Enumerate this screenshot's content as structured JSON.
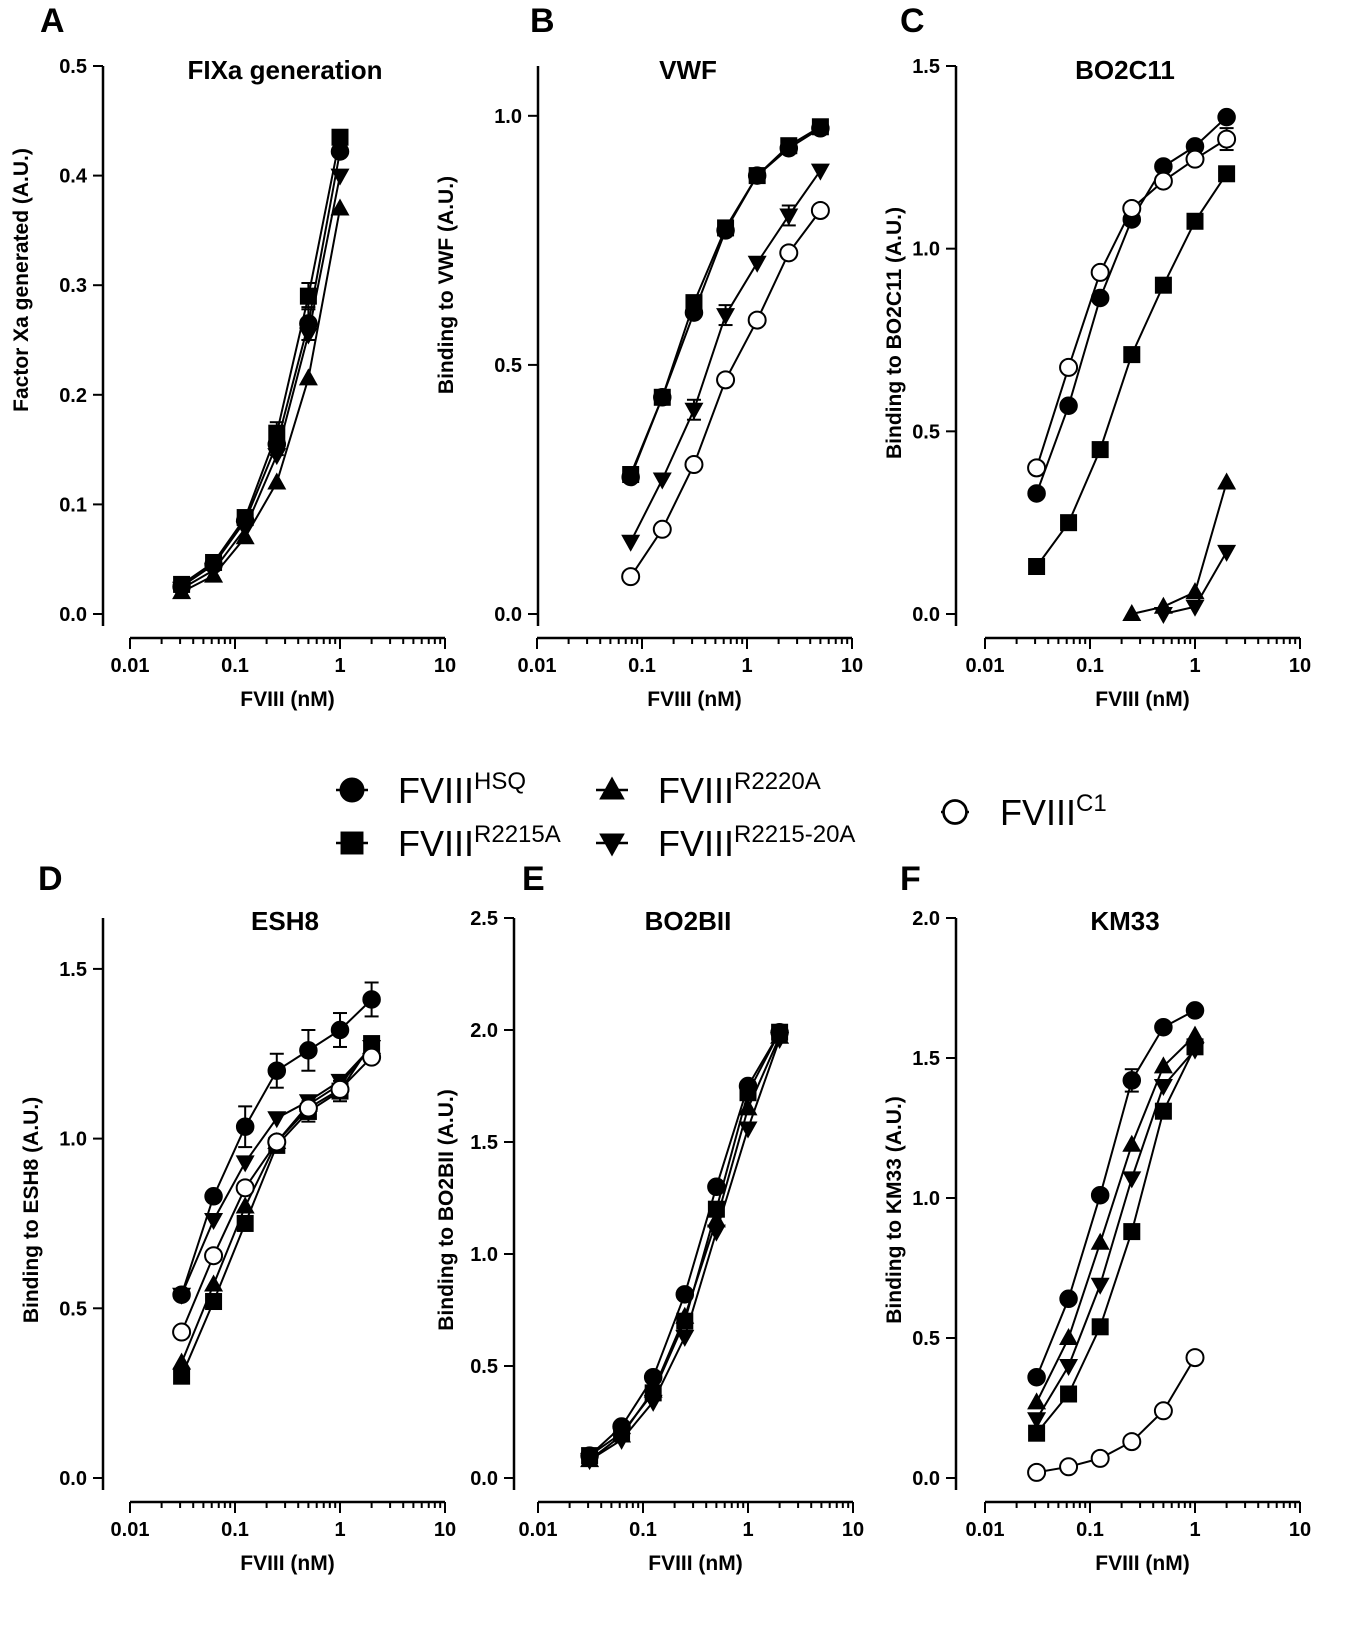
{
  "legend": [
    {
      "marker": "circle-filled",
      "base": "FVIII",
      "sup": "HSQ"
    },
    {
      "marker": "square-filled",
      "base": "FVIII",
      "sup": "R2215A"
    },
    {
      "marker": "triangle-up-filled",
      "base": "FVIII",
      "sup": "R2220A"
    },
    {
      "marker": "triangle-down-filled",
      "base": "FVIII",
      "sup": "R2215-20A"
    },
    {
      "marker": "circle-open",
      "base": "FVIII",
      "sup": "C1"
    }
  ],
  "chart_data": [
    {
      "panel": "A",
      "type": "line",
      "title": "FIXa generation",
      "xlabel": "FVIII (nM)",
      "ylabel": "Factor Xa generated (A.U.)",
      "xscale": "log",
      "xlim": [
        0.01,
        10
      ],
      "ylim": [
        0,
        0.5
      ],
      "xticks": [
        "0.01",
        "0.1",
        "1",
        "10"
      ],
      "yticks": [
        "0.0",
        "0.1",
        "0.2",
        "0.3",
        "0.4",
        "0.5"
      ],
      "series": [
        {
          "marker": "circle-filled",
          "x": [
            0.031,
            0.0625,
            0.125,
            0.25,
            0.5,
            1
          ],
          "y": [
            0.025,
            0.045,
            0.085,
            0.155,
            0.265,
            0.422
          ],
          "err": [
            0,
            0,
            0,
            0.01,
            0.015,
            0
          ]
        },
        {
          "marker": "square-filled",
          "x": [
            0.031,
            0.0625,
            0.125,
            0.25,
            0.5,
            1
          ],
          "y": [
            0.027,
            0.047,
            0.088,
            0.165,
            0.29,
            0.435
          ],
          "err": [
            0,
            0,
            0,
            0.01,
            0.012,
            0
          ]
        },
        {
          "marker": "triangle-up-filled",
          "x": [
            0.031,
            0.0625,
            0.125,
            0.25,
            0.5,
            1
          ],
          "y": [
            0.02,
            0.035,
            0.07,
            0.12,
            0.215,
            0.37
          ],
          "err": [
            0,
            0,
            0,
            0,
            0,
            0
          ]
        },
        {
          "marker": "triangle-down-filled",
          "x": [
            0.031,
            0.0625,
            0.125,
            0.25,
            0.5,
            1
          ],
          "y": [
            0.023,
            0.04,
            0.078,
            0.145,
            0.255,
            0.4
          ],
          "err": [
            0,
            0,
            0,
            0,
            0,
            0
          ]
        }
      ]
    },
    {
      "panel": "B",
      "type": "line",
      "title": "VWF",
      "xlabel": "FVIII (nM)",
      "ylabel": "Binding to VWF (A.U.)",
      "xscale": "log",
      "xlim": [
        0.01,
        10
      ],
      "ylim": [
        0,
        1.1
      ],
      "xticks": [
        "0.01",
        "0.1",
        "1",
        "10"
      ],
      "yticks": [
        "0.0",
        "0.5",
        "1.0"
      ],
      "series": [
        {
          "marker": "circle-filled",
          "x": [
            0.078,
            0.156,
            0.3125,
            0.625,
            1.25,
            2.5,
            5
          ],
          "y": [
            0.275,
            0.435,
            0.605,
            0.77,
            0.88,
            0.935,
            0.975
          ],
          "err": [
            0,
            0,
            0,
            0,
            0,
            0,
            0
          ]
        },
        {
          "marker": "square-filled",
          "x": [
            0.078,
            0.156,
            0.3125,
            0.625,
            1.25,
            2.5,
            5
          ],
          "y": [
            0.28,
            0.435,
            0.625,
            0.775,
            0.88,
            0.94,
            0.978
          ],
          "err": [
            0,
            0,
            0,
            0,
            0,
            0,
            0
          ]
        },
        {
          "marker": "triangle-down-filled",
          "x": [
            0.078,
            0.156,
            0.3125,
            0.625,
            1.25,
            2.5,
            5
          ],
          "y": [
            0.145,
            0.27,
            0.41,
            0.6,
            0.705,
            0.8,
            0.89
          ],
          "err": [
            0,
            0,
            0.02,
            0.02,
            0,
            0.02,
            0
          ]
        },
        {
          "marker": "circle-open",
          "x": [
            0.078,
            0.156,
            0.3125,
            0.625,
            1.25,
            2.5,
            5
          ],
          "y": [
            0.075,
            0.17,
            0.3,
            0.47,
            0.59,
            0.725,
            0.81
          ],
          "err": [
            0,
            0,
            0,
            0,
            0,
            0,
            0
          ]
        }
      ]
    },
    {
      "panel": "C",
      "type": "line",
      "title": "BO2C11",
      "xlabel": "FVIII (nM)",
      "ylabel": "Binding to BO2C11 (A.U.)",
      "xscale": "log",
      "xlim": [
        0.01,
        10
      ],
      "ylim": [
        0,
        1.5
      ],
      "xticks": [
        "0.01",
        "0.1",
        "1",
        "10"
      ],
      "yticks": [
        "0.0",
        "0.5",
        "1.0",
        "1.5"
      ],
      "series": [
        {
          "marker": "circle-filled",
          "x": [
            0.031,
            0.0625,
            0.125,
            0.25,
            0.5,
            1,
            2
          ],
          "y": [
            0.33,
            0.57,
            0.865,
            1.08,
            1.225,
            1.28,
            1.36
          ],
          "err": [
            0,
            0,
            0,
            0,
            0,
            0,
            0
          ]
        },
        {
          "marker": "square-filled",
          "x": [
            0.031,
            0.0625,
            0.125,
            0.25,
            0.5,
            1,
            2
          ],
          "y": [
            0.13,
            0.25,
            0.45,
            0.71,
            0.9,
            1.075,
            1.205
          ],
          "err": [
            0,
            0,
            0,
            0,
            0,
            0,
            0
          ]
        },
        {
          "marker": "triangle-up-filled",
          "x": [
            0.25,
            0.5,
            1,
            2
          ],
          "y": [
            0.0,
            0.02,
            0.06,
            0.36
          ],
          "err": [
            0,
            0,
            0,
            0
          ]
        },
        {
          "marker": "triangle-down-filled",
          "x": [
            0.5,
            1,
            2
          ],
          "y": [
            0.0,
            0.02,
            0.17
          ],
          "err": [
            0,
            0,
            0
          ]
        },
        {
          "marker": "circle-open",
          "x": [
            0.031,
            0.0625,
            0.125,
            0.25,
            0.5,
            1,
            2
          ],
          "y": [
            0.4,
            0.675,
            0.935,
            1.11,
            1.185,
            1.245,
            1.3
          ],
          "err": [
            0,
            0,
            0,
            0,
            0,
            0,
            0.03
          ]
        }
      ]
    },
    {
      "panel": "D",
      "type": "line",
      "title": "ESH8",
      "xlabel": "FVIII (nM)",
      "ylabel": "Binding to  ESH8 (A.U.)",
      "xscale": "log",
      "xlim": [
        0.01,
        10
      ],
      "ylim": [
        0,
        1.65
      ],
      "xticks": [
        "0.01",
        "0.1",
        "1",
        "10"
      ],
      "yticks": [
        "0.0",
        "0.5",
        "1.0",
        "1.5"
      ],
      "series": [
        {
          "marker": "circle-filled",
          "x": [
            0.031,
            0.0625,
            0.125,
            0.25,
            0.5,
            1,
            2
          ],
          "y": [
            0.54,
            0.83,
            1.035,
            1.2,
            1.26,
            1.32,
            1.41
          ],
          "err": [
            0,
            0,
            0.06,
            0.05,
            0.06,
            0.05,
            0.05
          ]
        },
        {
          "marker": "square-filled",
          "x": [
            0.031,
            0.0625,
            0.125,
            0.25,
            0.5,
            1,
            2
          ],
          "y": [
            0.3,
            0.52,
            0.75,
            0.98,
            1.08,
            1.14,
            1.28
          ],
          "err": [
            0,
            0,
            0,
            0,
            0.03,
            0.03,
            0
          ]
        },
        {
          "marker": "triangle-up-filled",
          "x": [
            0.031,
            0.0625,
            0.125,
            0.25,
            0.5,
            1,
            2
          ],
          "y": [
            0.34,
            0.57,
            0.8,
            0.99,
            1.1,
            1.16,
            1.27
          ],
          "err": [
            0,
            0,
            0,
            0,
            0,
            0,
            0
          ]
        },
        {
          "marker": "triangle-down-filled",
          "x": [
            0.031,
            0.0625,
            0.125,
            0.25,
            0.5,
            1,
            2
          ],
          "y": [
            0.54,
            0.76,
            0.93,
            1.06,
            1.11,
            1.17,
            1.27
          ],
          "err": [
            0,
            0,
            0,
            0,
            0,
            0,
            0
          ]
        },
        {
          "marker": "circle-open",
          "x": [
            0.031,
            0.0625,
            0.125,
            0.25,
            0.5,
            1,
            2
          ],
          "y": [
            0.43,
            0.655,
            0.855,
            0.99,
            1.09,
            1.145,
            1.24
          ],
          "err": [
            0,
            0,
            0,
            0,
            0,
            0,
            0
          ]
        }
      ]
    },
    {
      "panel": "E",
      "type": "line",
      "title": "BO2BII",
      "xlabel": "FVIII (nM)",
      "ylabel": "Binding to BO2BII (A.U.)",
      "xscale": "log",
      "xlim": [
        0.01,
        10
      ],
      "ylim": [
        0,
        2.5
      ],
      "xticks": [
        "0.01",
        "0.1",
        "1",
        "10"
      ],
      "yticks": [
        "0.0",
        "0.5",
        "1.0",
        "1.5",
        "2.0",
        "2.5"
      ],
      "series": [
        {
          "marker": "circle-filled",
          "x": [
            0.031,
            0.0625,
            0.125,
            0.25,
            0.5,
            1,
            2
          ],
          "y": [
            0.1,
            0.23,
            0.45,
            0.82,
            1.3,
            1.75,
            1.99
          ],
          "err": [
            0,
            0,
            0,
            0,
            0,
            0,
            0
          ]
        },
        {
          "marker": "square-filled",
          "x": [
            0.031,
            0.0625,
            0.125,
            0.25,
            0.5,
            1,
            2
          ],
          "y": [
            0.1,
            0.2,
            0.38,
            0.7,
            1.2,
            1.72,
            1.99
          ],
          "err": [
            0,
            0,
            0,
            0,
            0,
            0,
            0
          ]
        },
        {
          "marker": "triangle-up-filled",
          "x": [
            0.031,
            0.0625,
            0.125,
            0.25,
            0.5,
            1,
            2
          ],
          "y": [
            0.08,
            0.19,
            0.39,
            0.72,
            1.15,
            1.65,
            1.97
          ],
          "err": [
            0,
            0,
            0,
            0,
            0,
            0,
            0
          ]
        },
        {
          "marker": "triangle-down-filled",
          "x": [
            0.031,
            0.0625,
            0.125,
            0.25,
            0.5,
            1,
            2
          ],
          "y": [
            0.08,
            0.17,
            0.34,
            0.63,
            1.1,
            1.56,
            1.96
          ],
          "err": [
            0,
            0,
            0,
            0,
            0,
            0,
            0
          ]
        }
      ]
    },
    {
      "panel": "F",
      "type": "line",
      "title": "KM33",
      "xlabel": "FVIII (nM)",
      "ylabel": "Binding to KM33 (A.U.)",
      "xscale": "log",
      "xlim": [
        0.01,
        10
      ],
      "ylim": [
        0,
        2.0
      ],
      "xticks": [
        "0.01",
        "0.1",
        "1",
        "10"
      ],
      "yticks": [
        "0.0",
        "0.5",
        "1.0",
        "1.5",
        "2.0"
      ],
      "series": [
        {
          "marker": "circle-filled",
          "x": [
            0.031,
            0.0625,
            0.125,
            0.25,
            0.5,
            1
          ],
          "y": [
            0.36,
            0.64,
            1.01,
            1.42,
            1.61,
            1.67
          ],
          "err": [
            0,
            0,
            0,
            0.04,
            0,
            0
          ]
        },
        {
          "marker": "square-filled",
          "x": [
            0.031,
            0.0625,
            0.125,
            0.25,
            0.5,
            1
          ],
          "y": [
            0.16,
            0.3,
            0.54,
            0.88,
            1.31,
            1.54
          ],
          "err": [
            0,
            0,
            0,
            0,
            0,
            0
          ]
        },
        {
          "marker": "triangle-up-filled",
          "x": [
            0.031,
            0.0625,
            0.125,
            0.25,
            0.5,
            1
          ],
          "y": [
            0.27,
            0.5,
            0.84,
            1.19,
            1.47,
            1.58
          ],
          "err": [
            0,
            0,
            0,
            0,
            0,
            0
          ]
        },
        {
          "marker": "triangle-down-filled",
          "x": [
            0.031,
            0.0625,
            0.125,
            0.25,
            0.5,
            1
          ],
          "y": [
            0.21,
            0.4,
            0.69,
            1.07,
            1.4,
            1.53
          ],
          "err": [
            0,
            0,
            0,
            0,
            0,
            0
          ]
        },
        {
          "marker": "circle-open",
          "x": [
            0.031,
            0.0625,
            0.125,
            0.25,
            0.5,
            1
          ],
          "y": [
            0.02,
            0.04,
            0.07,
            0.13,
            0.24,
            0.43
          ],
          "err": [
            0,
            0,
            0,
            0,
            0,
            0
          ]
        }
      ]
    }
  ]
}
